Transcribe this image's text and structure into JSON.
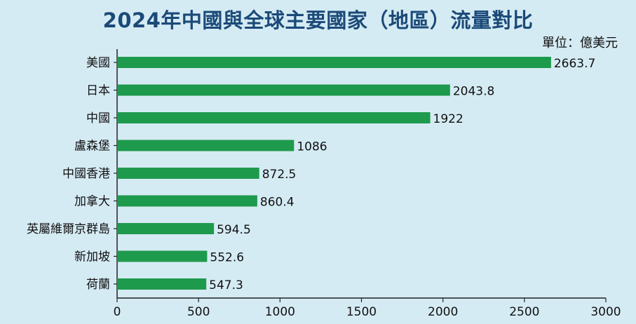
{
  "header": {
    "title": "2024年中國與全球主要國家（地區）流量對比",
    "unit": "單位：億美元"
  },
  "colors": {
    "background": "#d5ebf4",
    "bar": "#1e9a4c",
    "title": "#1b4a78",
    "axis": "#222222"
  },
  "chart_data": {
    "type": "bar",
    "orientation": "horizontal",
    "title": "2024年中國與全球主要國家（地區）流量對比",
    "unit": "單位：億美元",
    "categories": [
      "美國",
      "日本",
      "中國",
      "盧森堡",
      "中國香港",
      "加拿大",
      "英屬維爾京群島",
      "新加坡",
      "荷蘭"
    ],
    "values": [
      2663.7,
      2043.8,
      1922,
      1086,
      872.5,
      860.4,
      594.5,
      552.6,
      547.3
    ],
    "value_labels": [
      "2663.7",
      "2043.8",
      "1922",
      "1086",
      "872.5",
      "860.4",
      "594.5",
      "552.6",
      "547.3"
    ],
    "xlim": [
      0,
      3000
    ],
    "xticks": [
      0,
      500,
      1000,
      1500,
      2000,
      2500,
      3000
    ],
    "xtick_labels": [
      "0",
      "500",
      "1000",
      "1500",
      "2000",
      "2500",
      "3000"
    ],
    "grid": false,
    "legend": false
  }
}
